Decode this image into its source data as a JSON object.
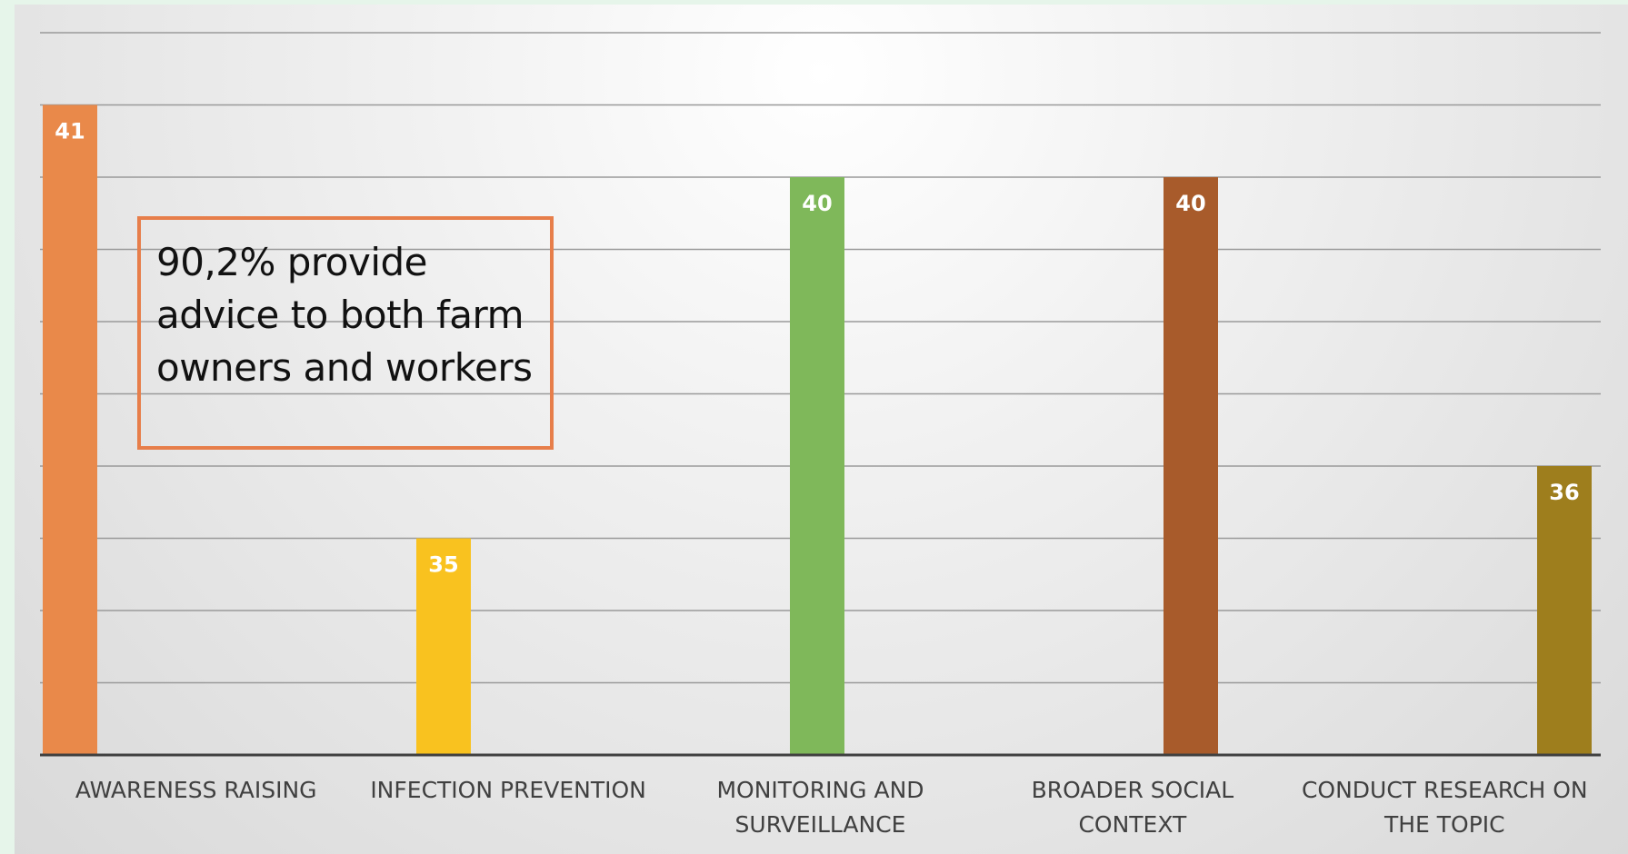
{
  "annotation": {
    "text": "90,2% provide advice to both farm owners and workers"
  },
  "colors": {
    "page_background": "#e6f5ea",
    "annotation_border": "#e77e4a",
    "gridline": "#9a9a9a",
    "axis": "#404040"
  },
  "chart_data": {
    "type": "bar",
    "categories": [
      [
        "AWARENESS RAISING"
      ],
      [
        "INFECTION PREVENTION"
      ],
      [
        "MONITORING AND",
        "SURVEILLANCE"
      ],
      [
        "BROADER SOCIAL",
        "CONTEXT"
      ],
      [
        "CONDUCT RESEARCH ON",
        "THE TOPIC"
      ]
    ],
    "values": [
      41,
      35,
      40,
      40,
      36
    ],
    "bar_colors": [
      "#e9894a",
      "#f9c21f",
      "#7fb85a",
      "#a85b2b",
      "#9e7e1d"
    ],
    "ylim": [
      32,
      42
    ],
    "gridline_step": 1,
    "grid": true,
    "title": "",
    "xlabel": "",
    "ylabel": ""
  }
}
